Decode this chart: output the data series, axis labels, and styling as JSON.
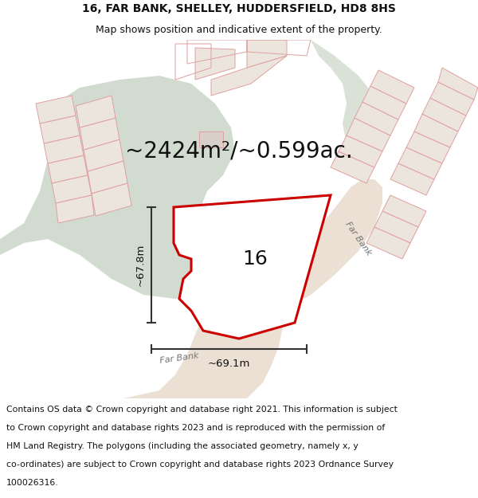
{
  "title_line1": "16, FAR BANK, SHELLEY, HUDDERSFIELD, HD8 8HS",
  "title_line2": "Map shows position and indicative extent of the property.",
  "area_text": "~2424m²/~0.599ac.",
  "label_16": "16",
  "dim_vertical": "~67.8m",
  "dim_horizontal": "~69.1m",
  "far_bank_label_diag": "Far Bank",
  "far_bank_label_horiz": "Far Bank",
  "footer_lines": [
    "Contains OS data © Crown copyright and database right 2021. This information is subject",
    "to Crown copyright and database rights 2023 and is reproduced with the permission of",
    "HM Land Registry. The polygons (including the associated geometry, namely x, y",
    "co-ordinates) are subject to Crown copyright and database rights 2023 Ordnance Survey",
    "100026316."
  ],
  "map_bg": "#f5f3ef",
  "green_color": "#cdd8cb",
  "green_right_color": "#d4ddd2",
  "road_color": "#e8d8c8",
  "plot_fill": "#ffffff",
  "plot_outline": "#cc0000",
  "neighbor_fill": "#ebe5dd",
  "neighbor_outline": "#e0a0a0",
  "dim_line_color": "#333333",
  "title_fontsize": 10,
  "subtitle_fontsize": 9,
  "area_fontsize": 20,
  "label_fontsize": 18,
  "dim_fontsize": 9.5,
  "road_label_fontsize": 8,
  "footer_fontsize": 7.8
}
